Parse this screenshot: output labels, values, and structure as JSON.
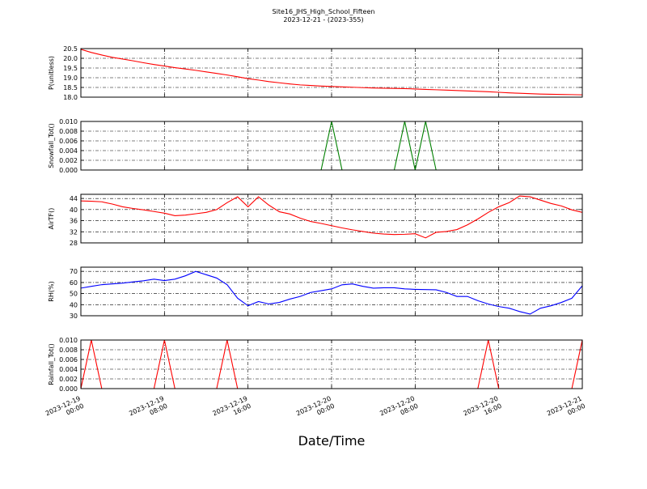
{
  "chart_data": {
    "type": "line",
    "title": "Site16_JHS_High_School_Fifteen",
    "subtitle": "2023-12-21 - (2023-355)",
    "xlabel": "Date/Time",
    "grid": true,
    "xlim": [
      "2023-12-19 00:00",
      "2023-12-21 00:00"
    ],
    "xticks": [
      "2023-12-19 00:00",
      "2023-12-19 08:00",
      "2023-12-19 16:00",
      "2023-12-20 00:00",
      "2023-12-20 08:00",
      "2023-12-20 16:00",
      "2023-12-21 00:00"
    ],
    "x": [
      "2023-12-19 00:00",
      "2023-12-19 01:00",
      "2023-12-19 02:00",
      "2023-12-19 03:00",
      "2023-12-19 04:00",
      "2023-12-19 05:00",
      "2023-12-19 06:00",
      "2023-12-19 07:00",
      "2023-12-19 08:00",
      "2023-12-19 09:00",
      "2023-12-19 10:00",
      "2023-12-19 11:00",
      "2023-12-19 12:00",
      "2023-12-19 13:00",
      "2023-12-19 14:00",
      "2023-12-19 15:00",
      "2023-12-19 16:00",
      "2023-12-19 17:00",
      "2023-12-19 18:00",
      "2023-12-19 19:00",
      "2023-12-19 20:00",
      "2023-12-19 21:00",
      "2023-12-19 22:00",
      "2023-12-19 23:00",
      "2023-12-20 00:00",
      "2023-12-20 01:00",
      "2023-12-20 02:00",
      "2023-12-20 03:00",
      "2023-12-20 04:00",
      "2023-12-20 05:00",
      "2023-12-20 06:00",
      "2023-12-20 07:00",
      "2023-12-20 08:00",
      "2023-12-20 09:00",
      "2023-12-20 10:00",
      "2023-12-20 11:00",
      "2023-12-20 12:00",
      "2023-12-20 13:00",
      "2023-12-20 14:00",
      "2023-12-20 15:00",
      "2023-12-20 16:00",
      "2023-12-20 17:00",
      "2023-12-20 18:00",
      "2023-12-20 19:00",
      "2023-12-20 20:00",
      "2023-12-20 21:00",
      "2023-12-20 22:00",
      "2023-12-20 23:00",
      "2023-12-21 00:00"
    ],
    "panels": [
      {
        "ylabel": "P(unitless)",
        "ylim": [
          18,
          20.5
        ],
        "yticks": [
          {
            "value": 18,
            "label": "18.0"
          },
          {
            "value": 18.5,
            "label": "18.5"
          },
          {
            "value": 19,
            "label": "19.0"
          },
          {
            "value": 19.5,
            "label": "19.5"
          },
          {
            "value": 20,
            "label": "20.0"
          },
          {
            "value": 20.5,
            "label": "20.5"
          }
        ],
        "series": [
          {
            "color": "#ff0000",
            "values": [
              20.46,
              20.3,
              20.17,
              20.05,
              19.96,
              19.87,
              19.77,
              19.68,
              19.6,
              19.52,
              19.45,
              19.38,
              19.3,
              19.22,
              19.14,
              19.05,
              18.95,
              18.88,
              18.8,
              18.74,
              18.68,
              18.63,
              18.6,
              18.57,
              18.55,
              18.53,
              18.51,
              18.49,
              18.47,
              18.46,
              18.45,
              18.44,
              18.42,
              18.4,
              18.38,
              18.36,
              18.34,
              18.32,
              18.3,
              18.28,
              18.25,
              18.22,
              18.2,
              18.18,
              18.16,
              18.15,
              18.14,
              18.13,
              18.12
            ]
          }
        ]
      },
      {
        "ylabel": "Snowfall_Tot()",
        "ylim": [
          0,
          0.01
        ],
        "yticks": [
          {
            "value": 0,
            "label": "0.000"
          },
          {
            "value": 0.002,
            "label": "0.002"
          },
          {
            "value": 0.004,
            "label": "0.004"
          },
          {
            "value": 0.006,
            "label": "0.006"
          },
          {
            "value": 0.008,
            "label": "0.008"
          },
          {
            "value": 0.01,
            "label": "0.010"
          }
        ],
        "series": [
          {
            "color": "#008000",
            "values": [
              0,
              0,
              0,
              0,
              0,
              0,
              0,
              0,
              0,
              0,
              0,
              0,
              0,
              0,
              0,
              0,
              0,
              0,
              0,
              0,
              0,
              0,
              0,
              0,
              0.01,
              0,
              0,
              0,
              0,
              0,
              0,
              0.01,
              0,
              0.01,
              0,
              0,
              0,
              0,
              0,
              0,
              0,
              0,
              0,
              0,
              0,
              0,
              0,
              0,
              0
            ]
          }
        ]
      },
      {
        "ylabel": "AirTF()",
        "ylim": [
          28,
          45.5
        ],
        "yticks": [
          28,
          32,
          36,
          40,
          44
        ],
        "series": [
          {
            "color": "#ff0000",
            "values": [
              43.1,
              43,
              42.8,
              42,
              41,
              40.4,
              39.9,
              39.3,
              38.7,
              37.8,
              38,
              38.5,
              39,
              40,
              42.5,
              44.6,
              41,
              44.6,
              41.6,
              39.2,
              38.4,
              36.9,
              35.7,
              35,
              34.2,
              33.4,
              32.7,
              32.1,
              31.5,
              31.2,
              31,
              31.1,
              31.3,
              29.8,
              31.8,
              32.1,
              32.8,
              34.5,
              36.6,
              39,
              41,
              42.5,
              44.9,
              44.6,
              43.4,
              42.2,
              41.3,
              39.9,
              39
            ]
          }
        ]
      },
      {
        "ylabel": "RH(%)",
        "ylim": [
          30,
          73.8
        ],
        "yticks": [
          30,
          40,
          50,
          60,
          70
        ],
        "series": [
          {
            "color": "#0000ff",
            "values": [
              54.9,
              56.5,
              58,
              58.7,
              59.4,
              60.5,
              61.5,
              63,
              61.7,
              63,
              66,
              70,
              67,
              64,
              58,
              45.8,
              39,
              42.8,
              40.6,
              42,
              45,
              47.4,
              51,
              52.6,
              54.2,
              57.9,
              58.7,
              56.5,
              54.9,
              55.2,
              55.2,
              54.2,
              53.8,
              53.6,
              53.4,
              51,
              47.4,
              47.4,
              43.6,
              40.6,
              38.3,
              36.8,
              33.8,
              31.5,
              36.8,
              39,
              42,
              45.8,
              57
            ]
          }
        ]
      },
      {
        "ylabel": "Rainfall_Tot()",
        "ylim": [
          0,
          0.01
        ],
        "yticks": [
          {
            "value": 0,
            "label": "0.000"
          },
          {
            "value": 0.002,
            "label": "0.002"
          },
          {
            "value": 0.004,
            "label": "0.004"
          },
          {
            "value": 0.006,
            "label": "0.006"
          },
          {
            "value": 0.008,
            "label": "0.008"
          },
          {
            "value": 0.01,
            "label": "0.010"
          }
        ],
        "series": [
          {
            "color": "#ff0000",
            "values": [
              0,
              0.01,
              0,
              0,
              0,
              0,
              0,
              0,
              0.01,
              0,
              0,
              0,
              0,
              0,
              0.01,
              0,
              0,
              0,
              0,
              0,
              0,
              0,
              0,
              0,
              0,
              0,
              0,
              0,
              0,
              0,
              0,
              0,
              0,
              0,
              0,
              0,
              0,
              0,
              0,
              0.01,
              0,
              0,
              0,
              0,
              0,
              0,
              0,
              0,
              0.01
            ]
          }
        ]
      }
    ]
  }
}
